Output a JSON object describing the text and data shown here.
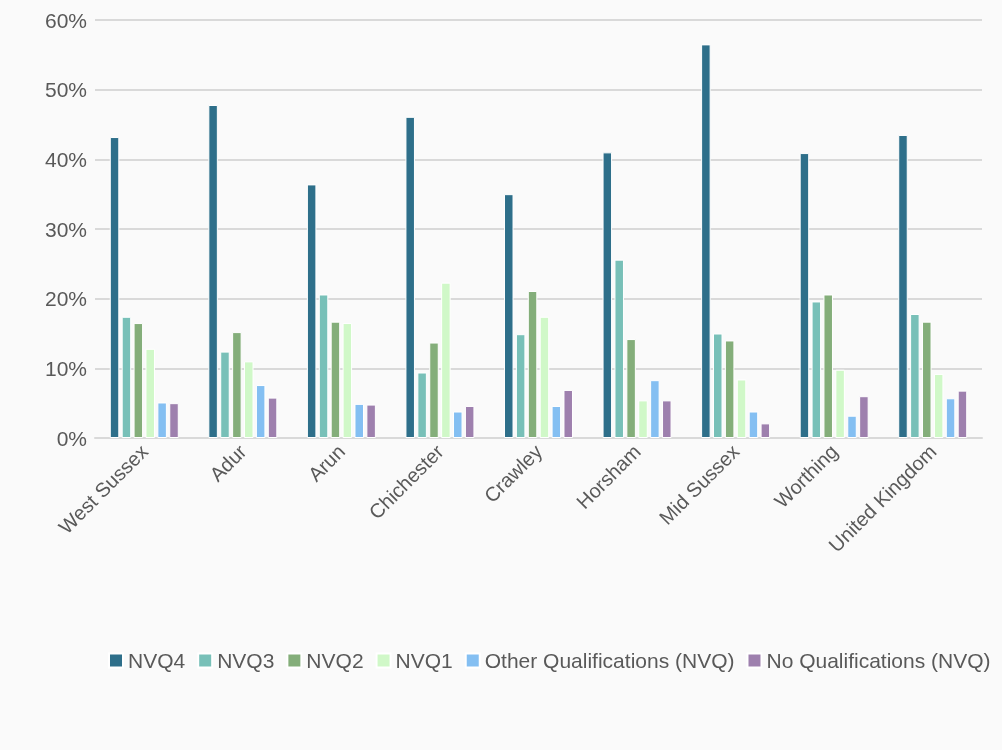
{
  "chart_data": {
    "type": "bar",
    "categories": [
      "West Sussex",
      "Adur",
      "Arun",
      "Chichester",
      "Crawley",
      "Horsham",
      "Mid Sussex",
      "Worthing",
      "United Kingdom"
    ],
    "series": [
      {
        "name": "NVQ4",
        "color": "#2e6f8a",
        "values": [
          43.2,
          47.8,
          36.4,
          46.1,
          35.0,
          41.0,
          56.5,
          40.9,
          43.5
        ]
      },
      {
        "name": "NVQ3",
        "color": "#78c0b8",
        "values": [
          17.4,
          12.4,
          20.6,
          9.4,
          14.9,
          25.6,
          15.0,
          19.6,
          17.8
        ]
      },
      {
        "name": "NVQ2",
        "color": "#84ae7a",
        "values": [
          16.5,
          15.2,
          16.7,
          13.7,
          21.1,
          14.2,
          14.0,
          20.6,
          16.7
        ]
      },
      {
        "name": "NVQ1",
        "color": "#d0f8c8",
        "values": [
          12.8,
          11.0,
          16.5,
          22.3,
          17.4,
          5.4,
          8.4,
          9.8,
          9.2
        ]
      },
      {
        "name": "Other Qualifications (NVQ)",
        "color": "#84bff2",
        "values": [
          5.1,
          7.6,
          4.9,
          3.8,
          4.6,
          8.3,
          3.8,
          3.2,
          5.7
        ]
      },
      {
        "name": "No Qualifications (NVQ)",
        "color": "#9e80ae",
        "values": [
          5.0,
          5.8,
          4.8,
          4.6,
          6.9,
          5.4,
          2.1,
          6.0,
          6.8
        ]
      }
    ],
    "ylim": [
      0,
      60
    ],
    "yticks": [
      {
        "value": 0,
        "label": "0%"
      },
      {
        "value": 10,
        "label": "10%"
      },
      {
        "value": 20,
        "label": "20%"
      },
      {
        "value": 30,
        "label": "30%"
      },
      {
        "value": 40,
        "label": "40%"
      },
      {
        "value": 50,
        "label": "50%"
      },
      {
        "value": 60,
        "label": "60%"
      }
    ],
    "grid": "y",
    "legend": "bottom"
  }
}
